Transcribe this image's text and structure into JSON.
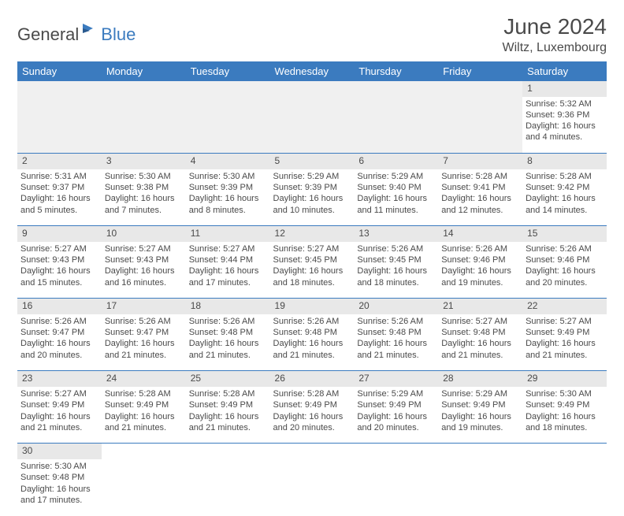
{
  "logo": {
    "dark": "General",
    "blue": "Blue"
  },
  "header": {
    "month": "June 2024",
    "location": "Wiltz, Luxembourg"
  },
  "colors": {
    "header_bg": "#3b7bbf",
    "header_fg": "#ffffff",
    "daynum_bg": "#e8e8e8",
    "text": "#4a4a4a",
    "rule": "#3b7bbf"
  },
  "weekdays": [
    "Sunday",
    "Monday",
    "Tuesday",
    "Wednesday",
    "Thursday",
    "Friday",
    "Saturday"
  ],
  "weeks": [
    [
      null,
      null,
      null,
      null,
      null,
      null,
      {
        "n": "1",
        "sr": "Sunrise: 5:32 AM",
        "ss": "Sunset: 9:36 PM",
        "dl": "Daylight: 16 hours and 4 minutes."
      }
    ],
    [
      {
        "n": "2",
        "sr": "Sunrise: 5:31 AM",
        "ss": "Sunset: 9:37 PM",
        "dl": "Daylight: 16 hours and 5 minutes."
      },
      {
        "n": "3",
        "sr": "Sunrise: 5:30 AM",
        "ss": "Sunset: 9:38 PM",
        "dl": "Daylight: 16 hours and 7 minutes."
      },
      {
        "n": "4",
        "sr": "Sunrise: 5:30 AM",
        "ss": "Sunset: 9:39 PM",
        "dl": "Daylight: 16 hours and 8 minutes."
      },
      {
        "n": "5",
        "sr": "Sunrise: 5:29 AM",
        "ss": "Sunset: 9:39 PM",
        "dl": "Daylight: 16 hours and 10 minutes."
      },
      {
        "n": "6",
        "sr": "Sunrise: 5:29 AM",
        "ss": "Sunset: 9:40 PM",
        "dl": "Daylight: 16 hours and 11 minutes."
      },
      {
        "n": "7",
        "sr": "Sunrise: 5:28 AM",
        "ss": "Sunset: 9:41 PM",
        "dl": "Daylight: 16 hours and 12 minutes."
      },
      {
        "n": "8",
        "sr": "Sunrise: 5:28 AM",
        "ss": "Sunset: 9:42 PM",
        "dl": "Daylight: 16 hours and 14 minutes."
      }
    ],
    [
      {
        "n": "9",
        "sr": "Sunrise: 5:27 AM",
        "ss": "Sunset: 9:43 PM",
        "dl": "Daylight: 16 hours and 15 minutes."
      },
      {
        "n": "10",
        "sr": "Sunrise: 5:27 AM",
        "ss": "Sunset: 9:43 PM",
        "dl": "Daylight: 16 hours and 16 minutes."
      },
      {
        "n": "11",
        "sr": "Sunrise: 5:27 AM",
        "ss": "Sunset: 9:44 PM",
        "dl": "Daylight: 16 hours and 17 minutes."
      },
      {
        "n": "12",
        "sr": "Sunrise: 5:27 AM",
        "ss": "Sunset: 9:45 PM",
        "dl": "Daylight: 16 hours and 18 minutes."
      },
      {
        "n": "13",
        "sr": "Sunrise: 5:26 AM",
        "ss": "Sunset: 9:45 PM",
        "dl": "Daylight: 16 hours and 18 minutes."
      },
      {
        "n": "14",
        "sr": "Sunrise: 5:26 AM",
        "ss": "Sunset: 9:46 PM",
        "dl": "Daylight: 16 hours and 19 minutes."
      },
      {
        "n": "15",
        "sr": "Sunrise: 5:26 AM",
        "ss": "Sunset: 9:46 PM",
        "dl": "Daylight: 16 hours and 20 minutes."
      }
    ],
    [
      {
        "n": "16",
        "sr": "Sunrise: 5:26 AM",
        "ss": "Sunset: 9:47 PM",
        "dl": "Daylight: 16 hours and 20 minutes."
      },
      {
        "n": "17",
        "sr": "Sunrise: 5:26 AM",
        "ss": "Sunset: 9:47 PM",
        "dl": "Daylight: 16 hours and 21 minutes."
      },
      {
        "n": "18",
        "sr": "Sunrise: 5:26 AM",
        "ss": "Sunset: 9:48 PM",
        "dl": "Daylight: 16 hours and 21 minutes."
      },
      {
        "n": "19",
        "sr": "Sunrise: 5:26 AM",
        "ss": "Sunset: 9:48 PM",
        "dl": "Daylight: 16 hours and 21 minutes."
      },
      {
        "n": "20",
        "sr": "Sunrise: 5:26 AM",
        "ss": "Sunset: 9:48 PM",
        "dl": "Daylight: 16 hours and 21 minutes."
      },
      {
        "n": "21",
        "sr": "Sunrise: 5:27 AM",
        "ss": "Sunset: 9:48 PM",
        "dl": "Daylight: 16 hours and 21 minutes."
      },
      {
        "n": "22",
        "sr": "Sunrise: 5:27 AM",
        "ss": "Sunset: 9:49 PM",
        "dl": "Daylight: 16 hours and 21 minutes."
      }
    ],
    [
      {
        "n": "23",
        "sr": "Sunrise: 5:27 AM",
        "ss": "Sunset: 9:49 PM",
        "dl": "Daylight: 16 hours and 21 minutes."
      },
      {
        "n": "24",
        "sr": "Sunrise: 5:28 AM",
        "ss": "Sunset: 9:49 PM",
        "dl": "Daylight: 16 hours and 21 minutes."
      },
      {
        "n": "25",
        "sr": "Sunrise: 5:28 AM",
        "ss": "Sunset: 9:49 PM",
        "dl": "Daylight: 16 hours and 21 minutes."
      },
      {
        "n": "26",
        "sr": "Sunrise: 5:28 AM",
        "ss": "Sunset: 9:49 PM",
        "dl": "Daylight: 16 hours and 20 minutes."
      },
      {
        "n": "27",
        "sr": "Sunrise: 5:29 AM",
        "ss": "Sunset: 9:49 PM",
        "dl": "Daylight: 16 hours and 20 minutes."
      },
      {
        "n": "28",
        "sr": "Sunrise: 5:29 AM",
        "ss": "Sunset: 9:49 PM",
        "dl": "Daylight: 16 hours and 19 minutes."
      },
      {
        "n": "29",
        "sr": "Sunrise: 5:30 AM",
        "ss": "Sunset: 9:49 PM",
        "dl": "Daylight: 16 hours and 18 minutes."
      }
    ],
    [
      {
        "n": "30",
        "sr": "Sunrise: 5:30 AM",
        "ss": "Sunset: 9:48 PM",
        "dl": "Daylight: 16 hours and 17 minutes."
      },
      null,
      null,
      null,
      null,
      null,
      null
    ]
  ]
}
